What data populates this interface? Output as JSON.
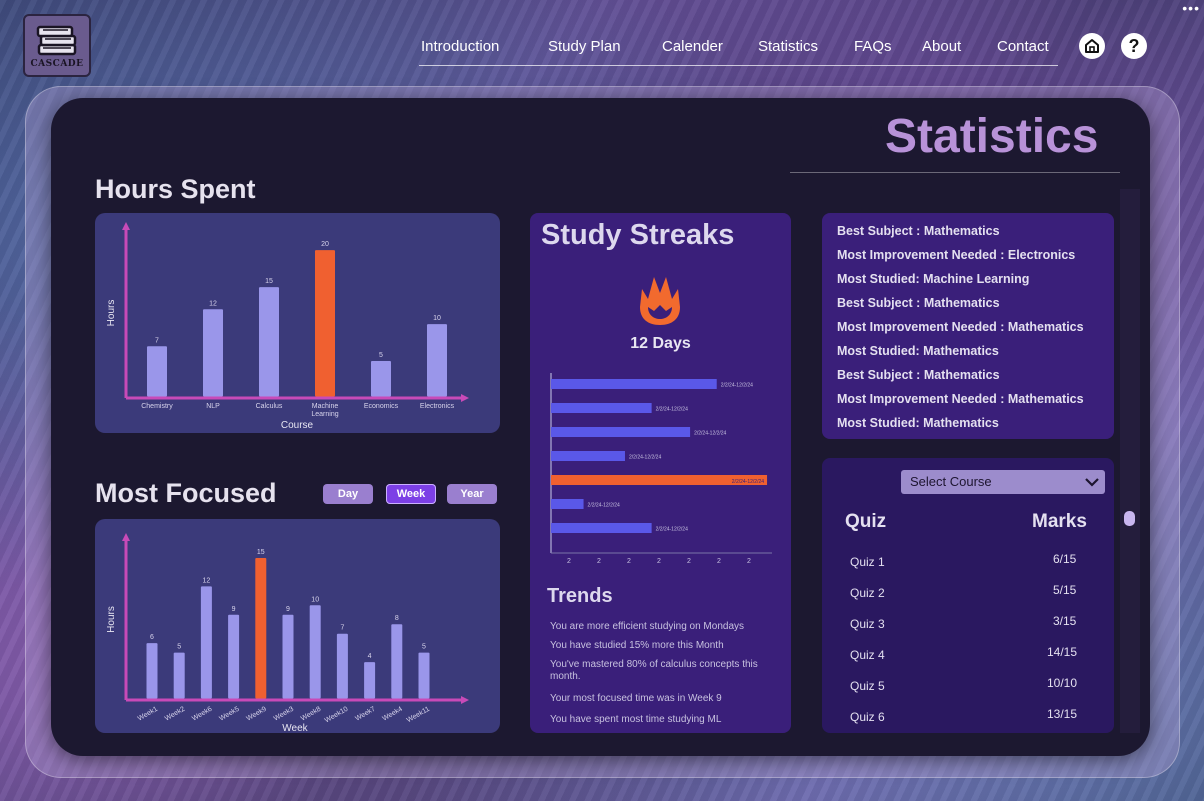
{
  "brand": {
    "logo_text": "CASCADE"
  },
  "nav": {
    "items": [
      "Introduction",
      "Study Plan",
      "Calender",
      "Statistics",
      "FAQs",
      "About",
      "Contact"
    ],
    "help_glyph": "?"
  },
  "page": {
    "title": "Statistics"
  },
  "hours_spent": {
    "title": "Hours Spent",
    "chart_data": {
      "type": "bar",
      "categories": [
        "Chemistry",
        "NLP",
        "Calculus",
        "Machine Learning",
        "Economics",
        "Electronics"
      ],
      "values": [
        7,
        12,
        15,
        20,
        5,
        10
      ],
      "highlight_index": 3,
      "xlabel": "Course",
      "ylabel": "Hours",
      "ylim": [
        0,
        23
      ],
      "colors": {
        "bar": "#9a96ea",
        "highlight": "#f06030",
        "axis": "#c84ab8"
      }
    }
  },
  "most_focused": {
    "title": "Most Focused",
    "buttons": {
      "day": "Day",
      "week": "Week",
      "year": "Year"
    },
    "active_button": "Week",
    "chart_data": {
      "type": "bar",
      "categories": [
        "Week1",
        "Week2",
        "Week6",
        "Week5",
        "Week9",
        "Week3",
        "Week8",
        "Week10",
        "Week7",
        "Week4",
        "Week11"
      ],
      "values": [
        6,
        5,
        12,
        9,
        15,
        9,
        10,
        7,
        4,
        8,
        5
      ],
      "highlight_index": 4,
      "xlabel": "Week",
      "ylabel": "Hours",
      "ylim": [
        0,
        17
      ],
      "colors": {
        "bar": "#9a96ea",
        "highlight": "#f06030",
        "axis": "#c84ab8"
      }
    }
  },
  "streaks": {
    "title": "Study Streaks",
    "days_label": "12 Days",
    "chart_data": {
      "type": "bar",
      "orientation": "horizontal",
      "bars": [
        {
          "value": 5.6,
          "label": "2/2/24-12/2/24"
        },
        {
          "value": 3.4,
          "label": "2/2/24-12/2/24"
        },
        {
          "value": 4.7,
          "label": "2/2/24-12/2/24"
        },
        {
          "value": 2.5,
          "label": "2/2/24-12/2/24"
        },
        {
          "value": 7.3,
          "label": "2/2/24-12/2/24",
          "highlight": true
        },
        {
          "value": 1.1,
          "label": "2/2/24-12/2/24"
        },
        {
          "value": 3.4,
          "label": "2/2/24-12/2/24"
        }
      ],
      "x_ticks": [
        "2",
        "2",
        "2",
        "2",
        "2",
        "2",
        "2"
      ],
      "xlim": [
        0,
        7.4
      ],
      "colors": {
        "bar": "#5a58e8",
        "highlight": "#f06030"
      }
    },
    "trends_title": "Trends",
    "trends": [
      "You are more efficient studying on Mondays",
      "You have studied 15% more this Month",
      "You've mastered 80% of calculus concepts this month.",
      "Your most focused time was in Week 9",
      "You have spent most time studying ML"
    ]
  },
  "insights": [
    "Best Subject : Mathematics",
    "Most Improvement Needed : Electronics",
    "Most Studied: Machine Learning",
    "Best Subject : Mathematics",
    "Most Improvement Needed : Mathematics",
    "Most Studied: Mathematics",
    "Best Subject : Mathematics",
    "Most Improvement Needed : Mathematics",
    "Most Studied: Mathematics"
  ],
  "quiz": {
    "select_label": "Select Course",
    "col_quiz": "Quiz",
    "col_marks": "Marks",
    "rows": [
      {
        "quiz": "Quiz 1",
        "marks": "6/15"
      },
      {
        "quiz": "Quiz 2",
        "marks": "5/15"
      },
      {
        "quiz": "Quiz 3",
        "marks": "3/15"
      },
      {
        "quiz": "Quiz 4",
        "marks": "14/15"
      },
      {
        "quiz": "Quiz 5",
        "marks": "10/10"
      },
      {
        "quiz": "Quiz 6",
        "marks": "13/15"
      }
    ]
  }
}
